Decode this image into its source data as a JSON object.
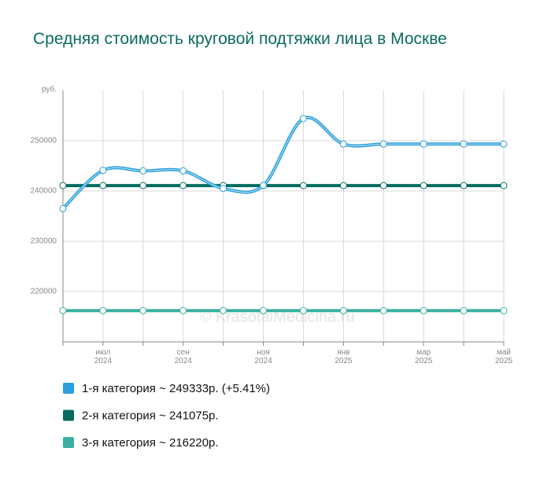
{
  "chart_data": {
    "type": "line",
    "title": "Средняя стоимость круговой подтяжки лица в Москве",
    "watermark": "© KrasotaiMedicina.ru",
    "categories": [
      null,
      "июл 2024",
      null,
      "сен 2024",
      null,
      "ноя 2024",
      null,
      "янв 2025",
      null,
      "мар 2025",
      null,
      "май 2025"
    ],
    "series": [
      {
        "name": "1-я категория ~ 249333р. (+5.41%)",
        "color": "#2b9fdb",
        "values": [
          236500,
          244100,
          244000,
          244000,
          240500,
          241100,
          254400,
          249333,
          249333,
          249333,
          249333,
          249333
        ]
      },
      {
        "name": "2-я категория ~ 241075р.",
        "color": "#046b5e",
        "values": [
          241075,
          241075,
          241075,
          241075,
          241075,
          241075,
          241075,
          241075,
          241075,
          241075,
          241075,
          241075
        ]
      },
      {
        "name": "3-я категория ~ 216220р.",
        "color": "#3bb0a2",
        "values": [
          216220,
          216220,
          216220,
          216220,
          216220,
          216220,
          216220,
          216220,
          216220,
          216220,
          216220,
          216220
        ]
      }
    ],
    "ylim": [
      210000,
      260000
    ],
    "yticks": [
      220000,
      230000,
      240000,
      250000,
      {
        "value": 260000,
        "label": "руб."
      }
    ],
    "grid": true
  }
}
